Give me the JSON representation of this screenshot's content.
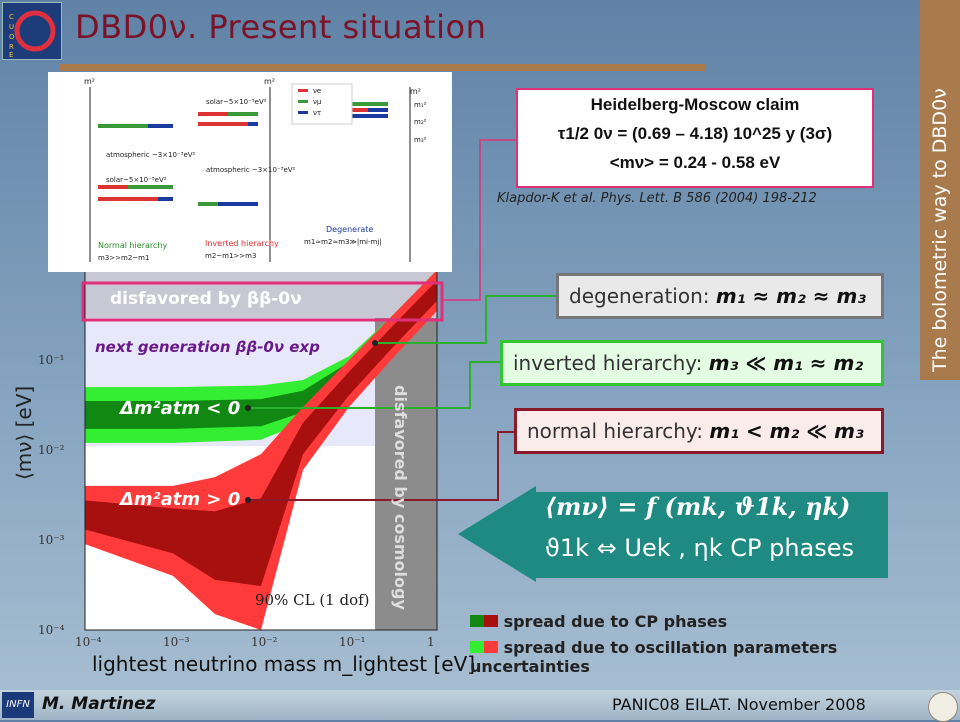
{
  "slide": {
    "title": "DBD0ν. Present situation",
    "side_banner": "The bolometric way to DBD0ν",
    "logo_label": "CUORE",
    "footer_author": "M. Martinez",
    "footer_conf": "PANIC08   EILAT. November 2008",
    "footer_logo": "INFN"
  },
  "claim": {
    "title": "Heidelberg-Moscow claim",
    "half_life": "τ1/2 0ν = (0.69 – 4.18) 10^25 y (3σ)",
    "mass": "<mν> = 0.24 - 0.58 eV",
    "reference": "Klapdor-K et al.  Phys. Lett. B 586 (2004) 198-212"
  },
  "hierarchy_diagram": {
    "legend": [
      "νe",
      "νμ",
      "ντ"
    ],
    "normal_label": "Normal hierarchy",
    "normal_sub": "m3>>m2~m1",
    "inverted_label": "Inverted hierarchy",
    "inverted_sub": "m2~m1>>m3",
    "degenerate_label": "Degenerate",
    "degenerate_sub": "m1≈m2≈m3≫|mi-mj|",
    "atmospheric": "atmospheric ~3×10⁻³eV²",
    "solar": "solar~5×10⁻⁵eV²",
    "m_squared": "m²",
    "levels": [
      "m₁²",
      "m₂²",
      "m₃²"
    ]
  },
  "labels": {
    "degeneration": "degeneration:",
    "degeneration_formula": "m₁ ≈ m₂ ≈ m₃",
    "inverted": "inverted hierarchy:",
    "inverted_formula": "m₃ ≪ m₁ ≈ m₂",
    "normal": "normal hierarchy:",
    "normal_formula": "m₁ < m₂ ≪ m₃",
    "formula_main": "⟨mν⟩ = f (mk, ϑ1k, ηk)",
    "formula_sub": "ϑ1k ⇔ Uek , ηk CP phases"
  },
  "legend": {
    "cp": "spread due to CP phases",
    "osc": "spread due to oscillation parameters uncertainties",
    "colors": {
      "cp_red": "#a80f0f",
      "cp_green": "#118811",
      "osc_red": "#ff3a3a",
      "osc_green": "#33ee33"
    }
  },
  "chart_data": {
    "type": "area",
    "xlabel": "lightest neutrino mass m_lightest [eV]",
    "ylabel": "⟨mν⟩ [eV]",
    "xscale": "log",
    "yscale": "log",
    "xlim": [
      0.0001,
      1
    ],
    "ylim": [
      0.0001,
      1
    ],
    "x_ticks": [
      "10⁻⁴",
      "10⁻³",
      "10⁻²",
      "10⁻¹",
      "1"
    ],
    "y_ticks": [
      "10⁻¹",
      "10⁻²",
      "10⁻³",
      "10⁻⁴"
    ],
    "regions": {
      "disfavored_bb": "disfavored by ββ-0ν",
      "next_gen": "next  generation ββ-0ν exp",
      "cosmology": "disfavored by cosmology",
      "cl": "90% CL (1 dof)"
    },
    "series": [
      {
        "name": "Δm²atm < 0",
        "x": [
          0.0001,
          0.001,
          0.01,
          0.03,
          0.1,
          0.3,
          1
        ],
        "y_low": [
          0.012,
          0.012,
          0.013,
          0.02,
          0.06,
          0.2,
          0.7
        ],
        "y_high": [
          0.05,
          0.05,
          0.052,
          0.06,
          0.11,
          0.3,
          1.0
        ]
      },
      {
        "name": "Δm²atm > 0",
        "x": [
          0.0001,
          0.001,
          0.003,
          0.01,
          0.03,
          0.1,
          0.3,
          1
        ],
        "y_low": [
          0.0009,
          0.0004,
          0.00015,
          0.0001,
          0.006,
          0.03,
          0.1,
          0.35
        ],
        "y_high": [
          0.004,
          0.004,
          0.005,
          0.009,
          0.03,
          0.1,
          0.3,
          1.0
        ]
      }
    ]
  }
}
